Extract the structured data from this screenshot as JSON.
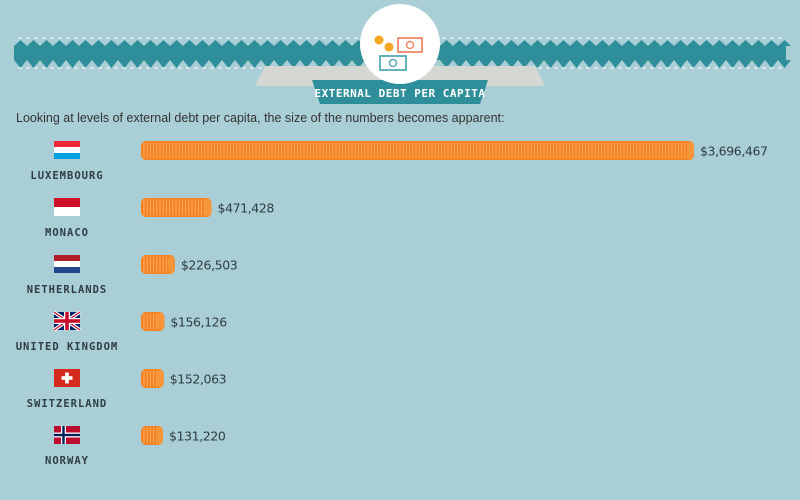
{
  "header": {
    "title": "EXTERNAL DEBT PER CAPITA",
    "intro": "Looking at levels of external debt per capita, the size of the numbers becomes apparent:",
    "colors": {
      "teal": "#2e8f9a",
      "banner_grey": "#d5d7d2",
      "coin_orange": "#f58220"
    }
  },
  "chart_data": {
    "type": "bar",
    "orientation": "horizontal",
    "title": "EXTERNAL DEBT PER CAPITA",
    "categories": [
      "LUXEMBOURG",
      "MONACO",
      "NETHERLANDS",
      "UNITED KINGDOM",
      "SWITZERLAND",
      "NORWAY"
    ],
    "values": [
      3696467,
      471428,
      226503,
      156126,
      152063,
      131220
    ],
    "value_labels": [
      "$3,696,467",
      "$471,428",
      "$226,503",
      "$156,126",
      "$152,063",
      "$131,220"
    ],
    "flags": [
      "luxembourg-flag-icon",
      "monaco-flag-icon",
      "netherlands-flag-icon",
      "uk-flag-icon",
      "switzerland-flag-icon",
      "norway-flag-icon"
    ],
    "bar_style": "stacked orange coins",
    "bar_color": "#f58220",
    "grid": false,
    "legend": "none"
  }
}
